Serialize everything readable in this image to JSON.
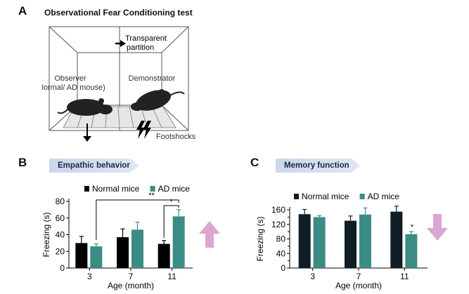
{
  "panel_a": {
    "letter": "A",
    "title": "Observational Fear Conditioning test",
    "label_partition_1": "Transparent",
    "label_partition_2": "partition",
    "label_observer_1": "Observer",
    "label_observer_2": "(Normal/ AD mouse)",
    "label_demonstrator": "Demonstrator",
    "label_footshocks": "Footshocks"
  },
  "chart_data": [
    {
      "type": "bar",
      "panel_letter": "B",
      "banner": "Empathic behavior",
      "categories": [
        "3",
        "7",
        "11"
      ],
      "series": [
        {
          "name": "Normal mice",
          "values": [
            30,
            37,
            29
          ],
          "errors": [
            8,
            10,
            4
          ]
        },
        {
          "name": "AD mice",
          "values": [
            26,
            46,
            62
          ],
          "errors": [
            3,
            9,
            8
          ]
        }
      ],
      "xlabel": "Age (month)",
      "ylabel": "Freezing (s)",
      "ylim": [
        0,
        80
      ],
      "yticks": [
        0,
        20,
        40,
        60,
        80
      ],
      "significance": [
        {
          "label": "**",
          "type": "3 AD vs 11 AD"
        },
        {
          "label": "*",
          "type": "11 Normal vs 11 AD"
        }
      ],
      "trend_arrow": "up",
      "colors": {
        "Normal mice": "#000000",
        "AD mice": "#3a8c84"
      },
      "legend": "top"
    },
    {
      "type": "bar",
      "panel_letter": "C",
      "banner": "Memory function",
      "categories": [
        "3",
        "7",
        "11"
      ],
      "series": [
        {
          "name": "Normal mice",
          "values": [
            148,
            130,
            155
          ],
          "errors": [
            13,
            13,
            15
          ]
        },
        {
          "name": "AD mice",
          "values": [
            140,
            147,
            93
          ],
          "errors": [
            4,
            18,
            7
          ]
        }
      ],
      "xlabel": "Age (month)",
      "ylabel": "Freezing (s)",
      "ylim": [
        0,
        160
      ],
      "yticks": [
        0,
        40,
        80,
        120,
        160
      ],
      "yticklabels": [
        "0",
        "40",
        "80",
        "120",
        "160"
      ],
      "extra_ticks": [
        20,
        60,
        100,
        140
      ],
      "significance": [
        {
          "label": "*",
          "type": "11 AD"
        }
      ],
      "trend_arrow": "down",
      "colors": {
        "Normal mice": "#0f1e26",
        "AD mice": "#3a8c84"
      },
      "legend": "top"
    }
  ]
}
